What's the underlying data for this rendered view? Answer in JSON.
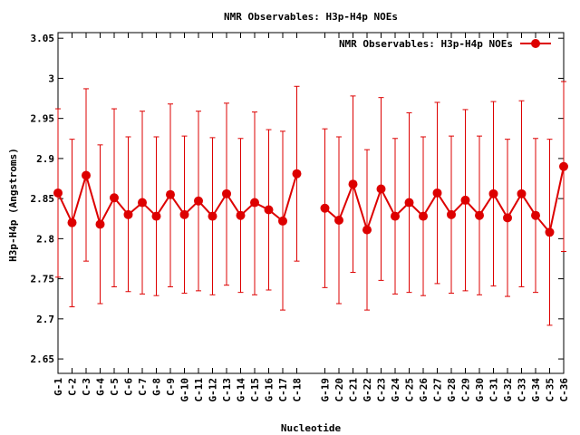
{
  "chart_data": {
    "type": "line",
    "title": "NMR Observables: H3p-H4p NOEs",
    "xlabel": "Nucleotide",
    "ylabel": "H3p-H4p (Angstroms)",
    "ylim": [
      2.632,
      3.057
    ],
    "yticks": [
      "2.65",
      "2.7",
      "2.75",
      "2.8",
      "2.85",
      "2.9",
      "2.95",
      "3",
      "3.05"
    ],
    "legend_position": "top-right",
    "grid": false,
    "color": "#dd0000",
    "series": [
      {
        "name": "NMR Observables: H3p-H4p NOEs",
        "segments": [
          {
            "categories": [
              "G-1",
              "C-2",
              "C-3",
              "G-4",
              "C-5",
              "C-6",
              "C-7",
              "G-8",
              "C-9",
              "G-10",
              "C-11",
              "G-12",
              "C-13",
              "G-14",
              "C-15",
              "G-16",
              "C-17",
              "C-18"
            ],
            "values": [
              2.857,
              2.82,
              2.879,
              2.818,
              2.851,
              2.83,
              2.845,
              2.828,
              2.855,
              2.83,
              2.847,
              2.828,
              2.856,
              2.829,
              2.845,
              2.836,
              2.822,
              2.881
            ],
            "err_high": [
              2.962,
              2.924,
              2.987,
              2.917,
              2.962,
              2.927,
              2.959,
              2.927,
              2.968,
              2.928,
              2.959,
              2.926,
              2.969,
              2.925,
              2.958,
              2.936,
              2.934,
              2.99
            ],
            "err_low": [
              2.752,
              2.715,
              2.772,
              2.719,
              2.74,
              2.734,
              2.731,
              2.729,
              2.74,
              2.732,
              2.735,
              2.73,
              2.742,
              2.733,
              2.73,
              2.736,
              2.711,
              2.772
            ]
          },
          {
            "categories": [
              "G-19",
              "C-20",
              "C-21",
              "G-22",
              "C-23",
              "G-24",
              "C-25",
              "G-26",
              "C-27",
              "G-28",
              "C-29",
              "G-30",
              "C-31",
              "G-32",
              "C-33",
              "G-34",
              "C-35",
              "C-36"
            ],
            "values": [
              2.838,
              2.823,
              2.868,
              2.811,
              2.862,
              2.828,
              2.845,
              2.828,
              2.857,
              2.83,
              2.848,
              2.829,
              2.856,
              2.826,
              2.856,
              2.829,
              2.808,
              2.89
            ],
            "err_high": [
              2.937,
              2.927,
              2.978,
              2.911,
              2.976,
              2.925,
              2.957,
              2.927,
              2.97,
              2.928,
              2.961,
              2.928,
              2.971,
              2.924,
              2.972,
              2.925,
              2.924,
              2.996
            ],
            "err_low": [
              2.739,
              2.719,
              2.758,
              2.711,
              2.748,
              2.731,
              2.733,
              2.729,
              2.744,
              2.732,
              2.735,
              2.73,
              2.741,
              2.728,
              2.74,
              2.733,
              2.692,
              2.784
            ]
          }
        ]
      }
    ]
  }
}
